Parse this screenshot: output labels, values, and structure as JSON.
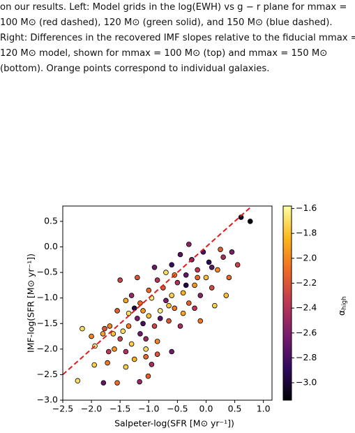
{
  "caption": [
    "on our results. Left: Model grids in the log(EWH) vs g − r plane for mmax =",
    "100 M⊙ (red dashed), 120 M⊙ (green solid), and 150 M⊙ (blue dashed).",
    "Right: Differences in the recovered IMF slopes relative to the fiducial mmax =",
    "120 M⊙ model, shown for mmax = 100 M⊙ (top) and mmax = 150 M⊙",
    "(bottom). Orange points correspond to individual galaxies."
  ],
  "chart_data": {
    "type": "scatter",
    "x_label": "Salpeter-log(SFR [M⊙ yr⁻¹])",
    "y_label": "IMF-log(SFR [M⊙ yr⁻¹])",
    "colorbar_label": {
      "symbol": "α",
      "subscript": "high"
    },
    "xlim": [
      -2.5,
      1.15
    ],
    "ylim": [
      -3.0,
      0.8
    ],
    "clim": [
      -3.14,
      -1.58
    ],
    "xticks": [
      {
        "value": -2.5,
        "label": "−2.5"
      },
      {
        "value": -2.0,
        "label": "−2.0"
      },
      {
        "value": -1.5,
        "label": "−1.5"
      },
      {
        "value": -1.0,
        "label": "−1.0"
      },
      {
        "value": -0.5,
        "label": "−0.5"
      },
      {
        "value": 0.0,
        "label": "0.0"
      },
      {
        "value": 0.5,
        "label": "0.5"
      },
      {
        "value": 1.0,
        "label": "1.0"
      }
    ],
    "yticks": [
      {
        "value": -3.0,
        "label": "−3.0"
      },
      {
        "value": -2.5,
        "label": "−2.5"
      },
      {
        "value": -2.0,
        "label": "−2.0"
      },
      {
        "value": -1.5,
        "label": "−1.5"
      },
      {
        "value": -1.0,
        "label": "−1.0"
      },
      {
        "value": -0.5,
        "label": "−0.5"
      },
      {
        "value": 0.0,
        "label": "0.0"
      },
      {
        "value": 0.5,
        "label": "0.5"
      }
    ],
    "cticks": [
      {
        "value": -3.0,
        "label": "−3.0"
      },
      {
        "value": -2.8,
        "label": "−2.8"
      },
      {
        "value": -2.6,
        "label": "−2.6"
      },
      {
        "value": -2.4,
        "label": "−2.4"
      },
      {
        "value": -2.2,
        "label": "−2.2"
      },
      {
        "value": -2.0,
        "label": "−2.0"
      },
      {
        "value": -1.8,
        "label": "−1.8"
      },
      {
        "value": -1.6,
        "label": "−1.6"
      }
    ],
    "colormap": [
      "#000004",
      "#320a5e",
      "#781c6d",
      "#bc3754",
      "#ed6925",
      "#fbb61a",
      "#fcffa4"
    ],
    "reference_line": {
      "color": "#e31a1c",
      "x": [
        -2.5,
        0.8
      ],
      "y": [
        -2.5,
        0.8
      ]
    },
    "x": [
      -2.24,
      -1.79,
      -1.55,
      -1.16,
      -1.95,
      -1.01,
      -1.72,
      -2.16,
      -1.94,
      -1.77,
      -1.68,
      -1.8,
      -1.62,
      -1.5,
      -1.45,
      -1.6,
      -1.4,
      -1.3,
      -1.25,
      -1.05,
      -0.95,
      -0.85,
      -1.2,
      -1.35,
      -1.1,
      -1.0,
      -0.9,
      -1.15,
      -1.3,
      -1.4,
      -0.8,
      -0.7,
      -0.75,
      -0.6,
      -0.55,
      -0.5,
      -0.4,
      -0.35,
      -0.3,
      -0.2,
      -0.15,
      -0.1,
      0.0,
      0.05,
      0.1,
      0.2,
      0.3,
      0.4,
      0.55,
      0.35,
      0.61,
      0.77,
      -0.25,
      -0.45,
      -0.6,
      -0.85,
      -1.0,
      -1.25,
      -1.15,
      -0.65,
      -0.4,
      -0.2,
      0.15,
      -0.05,
      -0.3,
      -0.7,
      -0.95,
      -1.05,
      -0.85,
      -1.55,
      -1.7,
      -2.0,
      -1.4,
      -0.6,
      -0.45,
      -0.1,
      0.25,
      0.1,
      -0.55,
      -0.8,
      -1.1,
      -1.2,
      -1.5,
      -0.35,
      0.45,
      -0.15,
      -0.65,
      -0.9,
      -1.35,
      -1.05
    ],
    "y": [
      -2.62,
      -2.66,
      -2.66,
      -2.64,
      -2.31,
      -2.53,
      -2.27,
      -1.6,
      -1.94,
      -1.6,
      -1.55,
      -1.7,
      -1.7,
      -1.8,
      -1.65,
      -2.0,
      -2.05,
      -1.9,
      -2.2,
      -2.15,
      -2.3,
      -2.1,
      -1.4,
      -1.3,
      -1.5,
      -1.35,
      -1.55,
      -1.1,
      -0.95,
      -1.05,
      -1.25,
      -1.05,
      -0.8,
      -0.95,
      -1.2,
      -0.7,
      -0.9,
      -0.55,
      -1.1,
      -0.75,
      -0.45,
      -0.95,
      -0.6,
      -0.3,
      -0.8,
      -0.45,
      -0.2,
      -0.6,
      -0.35,
      -0.95,
      0.58,
      0.5,
      -0.25,
      -0.15,
      -0.35,
      -0.65,
      -0.85,
      -1.2,
      -1.7,
      -1.45,
      -1.3,
      -1.2,
      -1.15,
      -0.1,
      0.05,
      -0.5,
      -1.0,
      -1.8,
      -1.85,
      -1.25,
      -2.05,
      -1.75,
      -2.35,
      -2.05,
      -1.55,
      -1.45,
      -0.05,
      -0.4,
      -0.55,
      -1.4,
      -1.25,
      -0.6,
      -0.65,
      -0.75,
      -0.1,
      -0.6,
      -1.15,
      -0.4,
      -1.55,
      -2.0
    ],
    "c": [
      -1.7,
      -2.7,
      -2.1,
      -2.5,
      -1.75,
      -2.15,
      -2.05,
      -1.7,
      -1.65,
      -2.2,
      -2.0,
      -1.9,
      -1.8,
      -2.3,
      -1.7,
      -1.95,
      -2.4,
      -1.75,
      -1.85,
      -2.1,
      -2.45,
      -2.2,
      -2.6,
      -1.7,
      -2.8,
      -1.8,
      -2.3,
      -2.1,
      -2.5,
      -1.9,
      -1.65,
      -2.6,
      -2.2,
      -1.75,
      -2.05,
      -2.4,
      -1.85,
      -2.7,
      -2.15,
      -1.95,
      -2.35,
      -2.55,
      -1.8,
      -2.9,
      -2.25,
      -2.0,
      -2.45,
      -2.1,
      -2.3,
      -1.8,
      -3.05,
      -3.1,
      -2.6,
      -2.75,
      -2.85,
      -2.4,
      -2.1,
      -2.95,
      -2.65,
      -2.2,
      -1.9,
      -2.35,
      -1.75,
      -2.8,
      -2.55,
      -1.7,
      -1.65,
      -2.5,
      -2.0,
      -2.15,
      -2.35,
      -2.0,
      -1.75,
      -2.65,
      -2.45,
      -2.05,
      -2.15,
      -2.7,
      -2.0,
      -2.75,
      -1.95,
      -2.2,
      -2.3,
      -2.95,
      -2.6,
      -2.1,
      -1.8,
      -2.65,
      -2.05,
      -1.7
    ]
  }
}
